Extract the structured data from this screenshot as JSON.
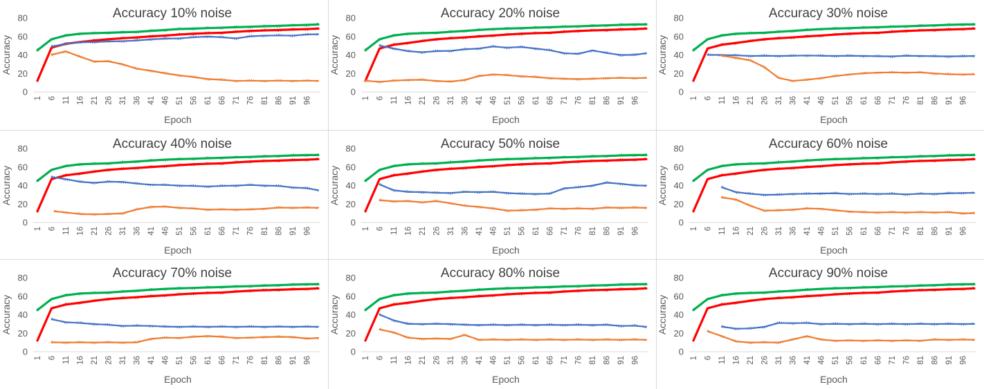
{
  "chart_data": {
    "type": "line",
    "x": [
      1,
      6,
      11,
      16,
      21,
      26,
      31,
      36,
      41,
      46,
      51,
      56,
      61,
      66,
      71,
      76,
      81,
      86,
      91,
      96,
      100
    ],
    "xticks": [
      "1",
      "6",
      "11",
      "16",
      "21",
      "26",
      "31",
      "36",
      "41",
      "46",
      "51",
      "56",
      "61",
      "66",
      "71",
      "76",
      "81",
      "86",
      "91",
      "96"
    ],
    "ylim": [
      0,
      80
    ],
    "yticks": [
      "0",
      "20",
      "40",
      "60",
      "80"
    ],
    "ylabel": "Accuracy",
    "xlabel": "Epoch",
    "colors": {
      "green": "#00b050",
      "red": "#ff0000",
      "blue": "#4472c4",
      "orange": "#ed7d31"
    },
    "panels": [
      {
        "title": "Accuracy 10% noise",
        "series": [
          {
            "color": "green",
            "values": [
              45,
              57,
              61,
              63,
              63.5,
              64,
              64.5,
              65,
              66,
              67,
              68,
              68.5,
              69,
              69.5,
              70,
              70.5,
              71,
              71.5,
              72,
              72.5,
              73
            ]
          },
          {
            "color": "red",
            "values": [
              12,
              48,
              52,
              54,
              55.5,
              57,
              58,
              59,
              60,
              61,
              62,
              63,
              63.5,
              64,
              65,
              66,
              66.5,
              67,
              67.5,
              68,
              68.5
            ]
          },
          {
            "color": "blue",
            "start": 5,
            "values": [
              null,
              49,
              52,
              53.5,
              54,
              54.5,
              55,
              55.5,
              57,
              57.5,
              58,
              59,
              60,
              59,
              58,
              60,
              61,
              61,
              61,
              62,
              62.5
            ]
          },
          {
            "color": "orange",
            "start": 6,
            "values": [
              null,
              40,
              44,
              38,
              33,
              33,
              30,
              25,
              23,
              20,
              18,
              16,
              14,
              13,
              12,
              12,
              12,
              12,
              12,
              12,
              12
            ]
          }
        ]
      },
      {
        "title": "Accuracy 20% noise",
        "series": [
          {
            "color": "green",
            "values": [
              45,
              57,
              61,
              63,
              63.5,
              64,
              65,
              66,
              67,
              68,
              68.5,
              69,
              69.5,
              70,
              70.5,
              71,
              71.5,
              72,
              72.5,
              73,
              73
            ]
          },
          {
            "color": "red",
            "values": [
              12,
              47,
              51,
              53,
              55,
              57,
              58,
              59,
              60,
              61,
              62,
              63,
              63.5,
              64,
              65,
              66,
              66.5,
              67,
              67.5,
              68,
              68.5
            ]
          },
          {
            "color": "blue",
            "start": 5,
            "values": [
              null,
              50,
              47,
              44,
              43,
              44,
              44.5,
              46,
              47,
              49,
              48,
              48.5,
              47,
              45,
              42,
              41,
              45,
              42,
              40,
              40,
              42
            ]
          },
          {
            "color": "orange",
            "start": 1,
            "values": [
              12,
              11,
              12,
              13,
              13,
              12,
              11,
              13,
              17,
              19,
              18,
              17,
              16,
              15,
              14,
              14,
              14,
              15,
              15,
              15,
              15
            ]
          }
        ]
      },
      {
        "title": "Accuracy 30% noise",
        "series": [
          {
            "color": "green",
            "values": [
              45,
              57,
              61,
              63,
              63.5,
              64,
              65,
              66,
              67,
              68,
              68.5,
              69,
              69.5,
              70,
              70.5,
              71,
              71.5,
              72,
              72.5,
              73,
              73
            ]
          },
          {
            "color": "red",
            "values": [
              12,
              47,
              51,
              53,
              55,
              57,
              58,
              59,
              60,
              61,
              62,
              63,
              63.5,
              64,
              65,
              66,
              66.5,
              67,
              67.5,
              68,
              68.5
            ]
          },
          {
            "color": "blue",
            "start": 5,
            "values": [
              null,
              40,
              40,
              39.5,
              39,
              39,
              39,
              39,
              39.5,
              39,
              39,
              39,
              39,
              38.5,
              38.5,
              39,
              39,
              38.5,
              38.5,
              38.5,
              39
            ]
          },
          {
            "color": "orange",
            "start": 8,
            "values": [
              null,
              null,
              39,
              37,
              34,
              27,
              15,
              12,
              13,
              15,
              17,
              19,
              20,
              21,
              21,
              21,
              21,
              20,
              19,
              19,
              19
            ]
          }
        ]
      },
      {
        "title": "Accuracy 40% noise",
        "series": [
          {
            "color": "green",
            "values": [
              45,
              57,
              61,
              63,
              63.5,
              64,
              65,
              66,
              67,
              68,
              68.5,
              69,
              69.5,
              70,
              70.5,
              71,
              71.5,
              72,
              72.5,
              73,
              73
            ]
          },
          {
            "color": "red",
            "values": [
              12,
              47,
              51,
              53,
              55,
              57,
              58,
              59,
              60,
              61,
              62,
              63,
              63.5,
              64,
              65,
              66,
              66.5,
              67,
              67.5,
              68,
              68.5
            ]
          },
          {
            "color": "blue",
            "start": 5,
            "values": [
              null,
              49,
              47,
              44,
              43,
              44,
              44,
              42,
              41,
              40.5,
              40,
              39.5,
              39,
              39.5,
              40,
              40.5,
              40,
              39.5,
              38,
              37,
              35
            ]
          },
          {
            "color": "orange",
            "start": 7,
            "values": [
              null,
              12,
              11,
              9,
              9,
              9,
              10,
              14,
              17,
              17,
              16,
              15,
              14,
              14,
              14,
              14,
              15,
              16,
              16,
              16,
              16
            ]
          }
        ]
      },
      {
        "title": "Accuracy 50% noise",
        "series": [
          {
            "color": "green",
            "values": [
              45,
              57,
              61,
              63,
              63.5,
              64,
              65,
              66,
              67,
              68,
              68.5,
              69,
              69.5,
              70,
              70.5,
              71,
              71.5,
              72,
              72.5,
              73,
              73
            ]
          },
          {
            "color": "red",
            "values": [
              12,
              47,
              51,
              53,
              55,
              57,
              58,
              59,
              60,
              61,
              62,
              63,
              63.5,
              64,
              65,
              66,
              66.5,
              67,
              67.5,
              68,
              68.5
            ]
          },
          {
            "color": "blue",
            "start": 6,
            "values": [
              null,
              41,
              35,
              33,
              33,
              32,
              32,
              33,
              33,
              33,
              32,
              31,
              31,
              31,
              37,
              38,
              40,
              43,
              42,
              40,
              40
            ]
          },
          {
            "color": "orange",
            "start": 5,
            "values": [
              null,
              24,
              23,
              23,
              22,
              23,
              21,
              18,
              17,
              15,
              13,
              13,
              14,
              15,
              15,
              15,
              15,
              16,
              16,
              16,
              16
            ]
          }
        ]
      },
      {
        "title": "Accuracy 60% noise",
        "series": [
          {
            "color": "green",
            "values": [
              45,
              57,
              61,
              63,
              63.5,
              64,
              65,
              66,
              67,
              68,
              68.5,
              69,
              69.5,
              70,
              70.5,
              71,
              71.5,
              72,
              72.5,
              73,
              73
            ]
          },
          {
            "color": "red",
            "values": [
              12,
              47,
              51,
              53,
              55,
              57,
              58,
              59,
              60,
              61,
              62,
              63,
              63.5,
              64,
              65,
              66,
              66.5,
              67,
              67.5,
              68,
              68.5
            ]
          },
          {
            "color": "blue",
            "start": 8,
            "values": [
              null,
              null,
              38,
              33,
              31,
              30,
              30,
              31,
              31,
              31.5,
              31.5,
              31,
              31,
              31,
              31,
              30.5,
              31,
              31,
              31.5,
              32,
              32
            ]
          },
          {
            "color": "orange",
            "start": 8,
            "values": [
              null,
              null,
              27,
              25,
              18,
              13,
              13,
              14,
              15,
              15,
              13,
              12,
              11,
              11,
              11,
              11,
              11,
              11,
              11,
              10,
              10
            ]
          }
        ]
      },
      {
        "title": "Accuracy 70% noise",
        "series": [
          {
            "color": "green",
            "values": [
              45,
              57,
              61,
              63,
              63.5,
              64,
              65,
              66,
              67,
              68,
              68.5,
              69,
              69.5,
              70,
              70.5,
              71,
              71.5,
              72,
              72.5,
              73,
              73
            ]
          },
          {
            "color": "red",
            "values": [
              12,
              47,
              51,
              53,
              55,
              57,
              58,
              59,
              60,
              61,
              62,
              63,
              63.5,
              64,
              65,
              66,
              66.5,
              67,
              67.5,
              68,
              68.5
            ]
          },
          {
            "color": "blue",
            "start": 6,
            "values": [
              null,
              35,
              32,
              31,
              30,
              29,
              28,
              28,
              28,
              27,
              27,
              27,
              27,
              27,
              27,
              27,
              27,
              27,
              27,
              27,
              27
            ]
          },
          {
            "color": "orange",
            "start": 6,
            "values": [
              null,
              10,
              10,
              10,
              10,
              10,
              10,
              10,
              14,
              15,
              15,
              16,
              17,
              16,
              15,
              15,
              16,
              16,
              16,
              14,
              15
            ]
          }
        ]
      },
      {
        "title": "Accuracy 80% noise",
        "series": [
          {
            "color": "green",
            "values": [
              45,
              57,
              61,
              63,
              63.5,
              64,
              65,
              66,
              67,
              68,
              68.5,
              69,
              69.5,
              70,
              70.5,
              71,
              71.5,
              72,
              72.5,
              73,
              73
            ]
          },
          {
            "color": "red",
            "values": [
              12,
              47,
              51,
              53,
              55,
              57,
              58,
              59,
              60,
              61,
              62,
              63,
              63.5,
              64,
              65,
              66,
              66.5,
              67,
              67.5,
              68,
              68.5
            ]
          },
          {
            "color": "blue",
            "start": 5,
            "values": [
              null,
              40,
              34,
              30,
              30,
              30,
              30,
              29,
              29,
              29,
              29,
              29,
              29,
              29,
              29,
              29,
              29,
              29,
              28,
              28,
              27
            ]
          },
          {
            "color": "orange",
            "start": 5,
            "values": [
              null,
              24,
              21,
              15,
              14,
              14,
              14,
              18,
              13,
              13,
              13,
              13,
              13,
              13,
              13,
              13,
              13,
              13,
              13,
              13,
              13
            ]
          }
        ]
      },
      {
        "title": "Accuracy 90% noise",
        "series": [
          {
            "color": "green",
            "values": [
              45,
              57,
              61,
              63,
              63.5,
              64,
              65,
              66,
              67,
              68,
              68.5,
              69,
              69.5,
              70,
              70.5,
              71,
              71.5,
              72,
              72.5,
              73,
              73
            ]
          },
          {
            "color": "red",
            "values": [
              12,
              47,
              51,
              53,
              55,
              57,
              58,
              59,
              60,
              61,
              62,
              63,
              63.5,
              64,
              65,
              66,
              66.5,
              67,
              67.5,
              68,
              68.5
            ]
          },
          {
            "color": "blue",
            "start": 8,
            "values": [
              null,
              null,
              27,
              25,
              25,
              27,
              31,
              31,
              31,
              30,
              30,
              30,
              30,
              30,
              30,
              30,
              30,
              30,
              30,
              30,
              30
            ]
          },
          {
            "color": "orange",
            "start": 5,
            "values": [
              null,
              22,
              17,
              11,
              10,
              10,
              10,
              13,
              17,
              13,
              12,
              12,
              12,
              12,
              12,
              12,
              12,
              13,
              13,
              13,
              13
            ]
          }
        ]
      }
    ]
  }
}
